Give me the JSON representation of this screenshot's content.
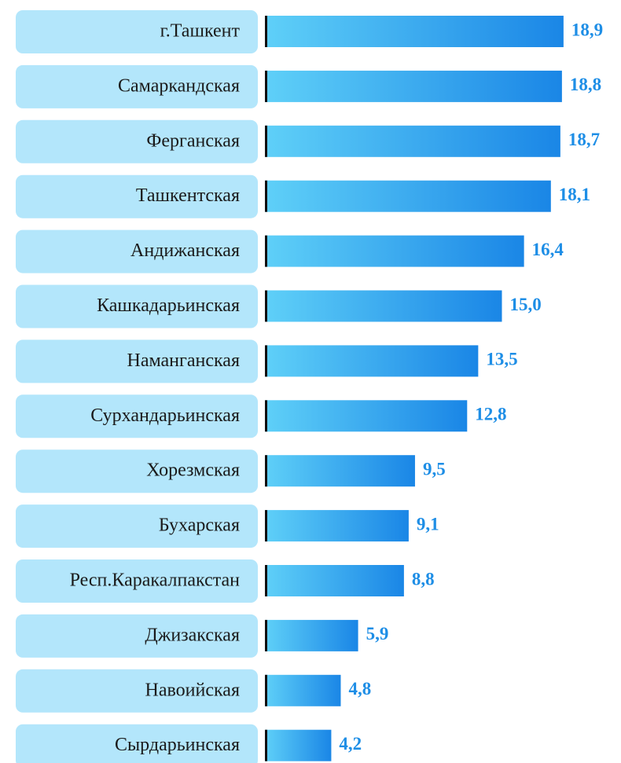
{
  "chart_data": {
    "type": "bar",
    "orientation": "horizontal",
    "categories": [
      "г.Ташкент",
      "Самаркандская",
      "Ферганская",
      "Ташкентская",
      "Андижанская",
      "Кашкадарьинская",
      "Наманганская",
      "Сурхандарьинская",
      "Хорезмская",
      "Бухарская",
      "Респ.Каракалпакстан",
      "Джизакская",
      "Навоийская",
      "Сырдарьинская"
    ],
    "values": [
      18.9,
      18.8,
      18.7,
      18.1,
      16.4,
      15.0,
      13.5,
      12.8,
      9.5,
      9.1,
      8.8,
      5.9,
      4.8,
      4.2
    ],
    "value_labels": [
      "18,9",
      "18,8",
      "18,7",
      "18,1",
      "16,4",
      "15,0",
      "13,5",
      "12,8",
      "9,5",
      "9,1",
      "8,8",
      "5,9",
      "4,8",
      "4,2"
    ],
    "color": "#1e88e5"
  }
}
